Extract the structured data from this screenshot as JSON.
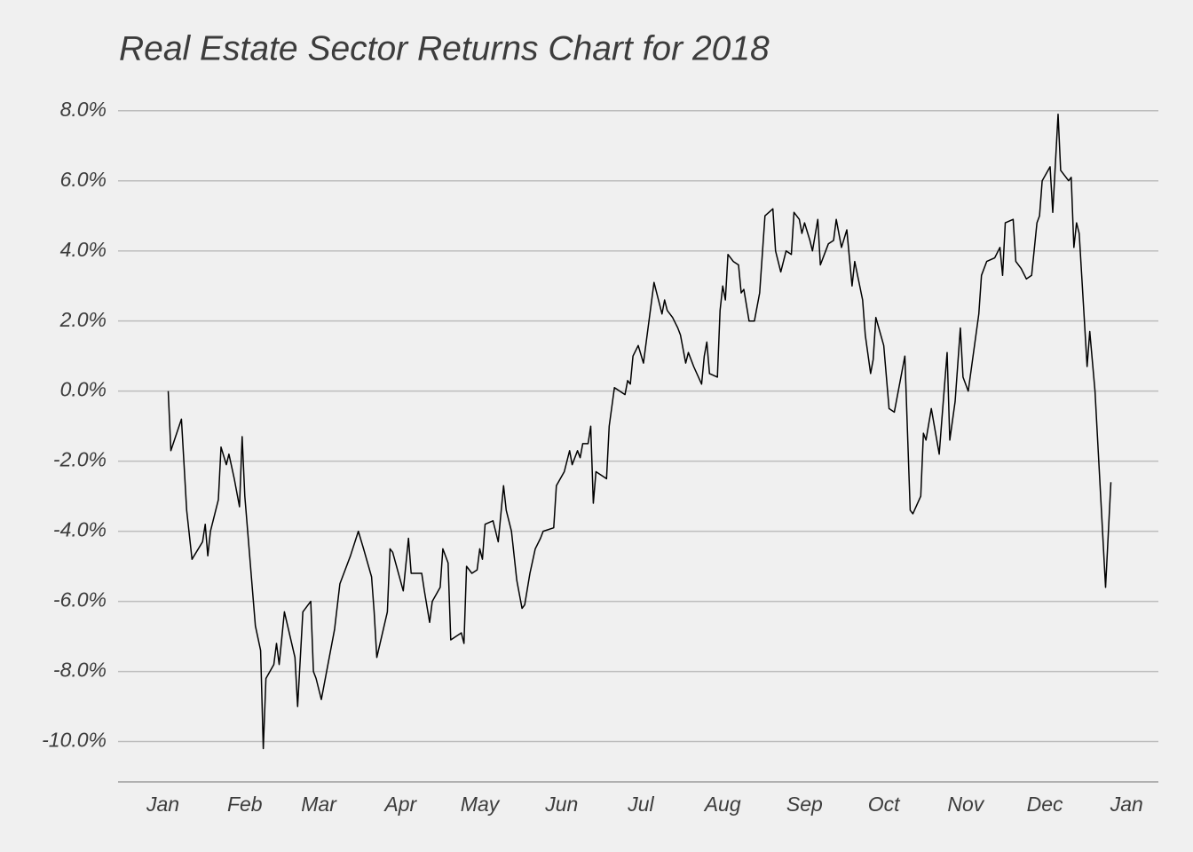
{
  "chart_data": {
    "type": "line",
    "title": "Real Estate Sector Returns Chart for 2018",
    "color": "#000000",
    "grid": true,
    "x": [
      2,
      3,
      7,
      9,
      11,
      15,
      16,
      17,
      18,
      21,
      22,
      24,
      25,
      27,
      29,
      30,
      31,
      35,
      37,
      38,
      39,
      42,
      43,
      44,
      46,
      50,
      51,
      53,
      56,
      57,
      58,
      60,
      65,
      67,
      71,
      74,
      76,
      79,
      80,
      81,
      85,
      86,
      87,
      91,
      93,
      94,
      98,
      99,
      101,
      102,
      105,
      106,
      108,
      109,
      113,
      114,
      115,
      117,
      119,
      120,
      121,
      122,
      125,
      127,
      129,
      130,
      132,
      134,
      136,
      137,
      139,
      141,
      143,
      144,
      148,
      149,
      152,
      154,
      155,
      157,
      158,
      159,
      161,
      162,
      163,
      164,
      168,
      169,
      171,
      175,
      176,
      177,
      178,
      180,
      182,
      186,
      189,
      190,
      191,
      193,
      195,
      196,
      198,
      199,
      201,
      204,
      205,
      206,
      207,
      210,
      211,
      212,
      213,
      214,
      216,
      218,
      219,
      220,
      222,
      224,
      226,
      228,
      231,
      232,
      234,
      236,
      238,
      239,
      241,
      242,
      243,
      245,
      246,
      248,
      249,
      251,
      252,
      254,
      255,
      257,
      259,
      261,
      262,
      265,
      266,
      268,
      269,
      270,
      273,
      275,
      277,
      281,
      283,
      284,
      287,
      288,
      289,
      291,
      294,
      295,
      297,
      298,
      300,
      302,
      303,
      305,
      309,
      310,
      312,
      315,
      317,
      318,
      319,
      322,
      323,
      325,
      327,
      329,
      331,
      332,
      333,
      336,
      337,
      339,
      340,
      343,
      344,
      345,
      346,
      347,
      350,
      351,
      353,
      357,
      359
    ],
    "values": [
      0.0,
      -1.7,
      -0.8,
      -3.4,
      -4.8,
      -4.3,
      -3.8,
      -4.7,
      -4.0,
      -3.1,
      -1.6,
      -2.1,
      -1.8,
      -2.5,
      -3.3,
      -1.3,
      -3.0,
      -6.7,
      -7.4,
      -10.2,
      -8.2,
      -7.8,
      -7.2,
      -7.8,
      -6.3,
      -7.6,
      -9.0,
      -6.3,
      -6.0,
      -8.0,
      -8.2,
      -8.8,
      -6.8,
      -5.5,
      -4.7,
      -4.0,
      -4.5,
      -5.3,
      -6.3,
      -7.6,
      -6.3,
      -4.5,
      -4.6,
      -5.7,
      -4.2,
      -5.2,
      -5.2,
      -5.7,
      -6.6,
      -6.0,
      -5.6,
      -4.5,
      -4.9,
      -7.1,
      -6.9,
      -7.2,
      -5.0,
      -5.2,
      -5.1,
      -4.5,
      -4.8,
      -3.8,
      -3.7,
      -4.3,
      -2.7,
      -3.4,
      -4.0,
      -5.4,
      -6.2,
      -6.1,
      -5.2,
      -4.5,
      -4.2,
      -4.0,
      -3.9,
      -2.7,
      -2.3,
      -1.7,
      -2.1,
      -1.7,
      -1.9,
      -1.5,
      -1.5,
      -1.0,
      -3.2,
      -2.3,
      -2.5,
      -1.0,
      0.1,
      -0.1,
      0.3,
      0.2,
      1.0,
      1.3,
      0.8,
      3.1,
      2.2,
      2.6,
      2.3,
      2.1,
      1.8,
      1.6,
      0.8,
      1.1,
      0.7,
      0.2,
      1.0,
      1.4,
      0.5,
      0.4,
      2.3,
      3.0,
      2.6,
      3.9,
      3.7,
      3.6,
      2.8,
      2.9,
      2.0,
      2.0,
      2.8,
      5.0,
      5.2,
      4.0,
      3.4,
      4.0,
      3.9,
      5.1,
      4.9,
      4.5,
      4.8,
      4.3,
      4.0,
      4.9,
      3.6,
      4.0,
      4.2,
      4.3,
      4.9,
      4.1,
      4.6,
      3.0,
      3.7,
      2.6,
      1.6,
      0.5,
      0.9,
      2.1,
      1.3,
      -0.5,
      -0.6,
      1.0,
      -3.4,
      -3.5,
      -3.0,
      -1.2,
      -1.4,
      -0.5,
      -1.8,
      -0.8,
      1.1,
      -1.4,
      -0.3,
      1.8,
      0.4,
      0.0,
      2.2,
      3.3,
      3.7,
      3.8,
      4.1,
      3.3,
      4.8,
      4.9,
      3.7,
      3.5,
      3.2,
      3.3,
      4.8,
      5.0,
      6.0,
      6.4,
      5.1,
      7.9,
      6.3,
      6.0,
      6.1,
      4.1,
      4.8,
      4.5,
      0.7,
      1.7,
      0.0,
      -5.6,
      -2.6
    ],
    "xlim": [
      -17,
      377
    ],
    "xticks": [
      {
        "value": 0,
        "label": "Jan"
      },
      {
        "value": 31,
        "label": "Feb"
      },
      {
        "value": 59,
        "label": "Mar"
      },
      {
        "value": 90,
        "label": "Apr"
      },
      {
        "value": 120,
        "label": "May"
      },
      {
        "value": 151,
        "label": "Jun"
      },
      {
        "value": 181,
        "label": "Jul"
      },
      {
        "value": 212,
        "label": "Aug"
      },
      {
        "value": 243,
        "label": "Sep"
      },
      {
        "value": 273,
        "label": "Oct"
      },
      {
        "value": 304,
        "label": "Nov"
      },
      {
        "value": 334,
        "label": "Dec"
      },
      {
        "value": 365,
        "label": "Jan"
      }
    ],
    "ylim": [
      -11.1,
      8.5
    ],
    "yticks": [
      {
        "value": -10,
        "label": "-10.0%"
      },
      {
        "value": -8,
        "label": "-8.0%"
      },
      {
        "value": -6,
        "label": "-6.0%"
      },
      {
        "value": -4,
        "label": "-4.0%"
      },
      {
        "value": -2,
        "label": "-2.0%"
      },
      {
        "value": 0,
        "label": "0.0%"
      },
      {
        "value": 2,
        "label": "2.0%"
      },
      {
        "value": 4,
        "label": "4.0%"
      },
      {
        "value": 6,
        "label": "6.0%"
      },
      {
        "value": 8,
        "label": "8.0%"
      }
    ]
  }
}
